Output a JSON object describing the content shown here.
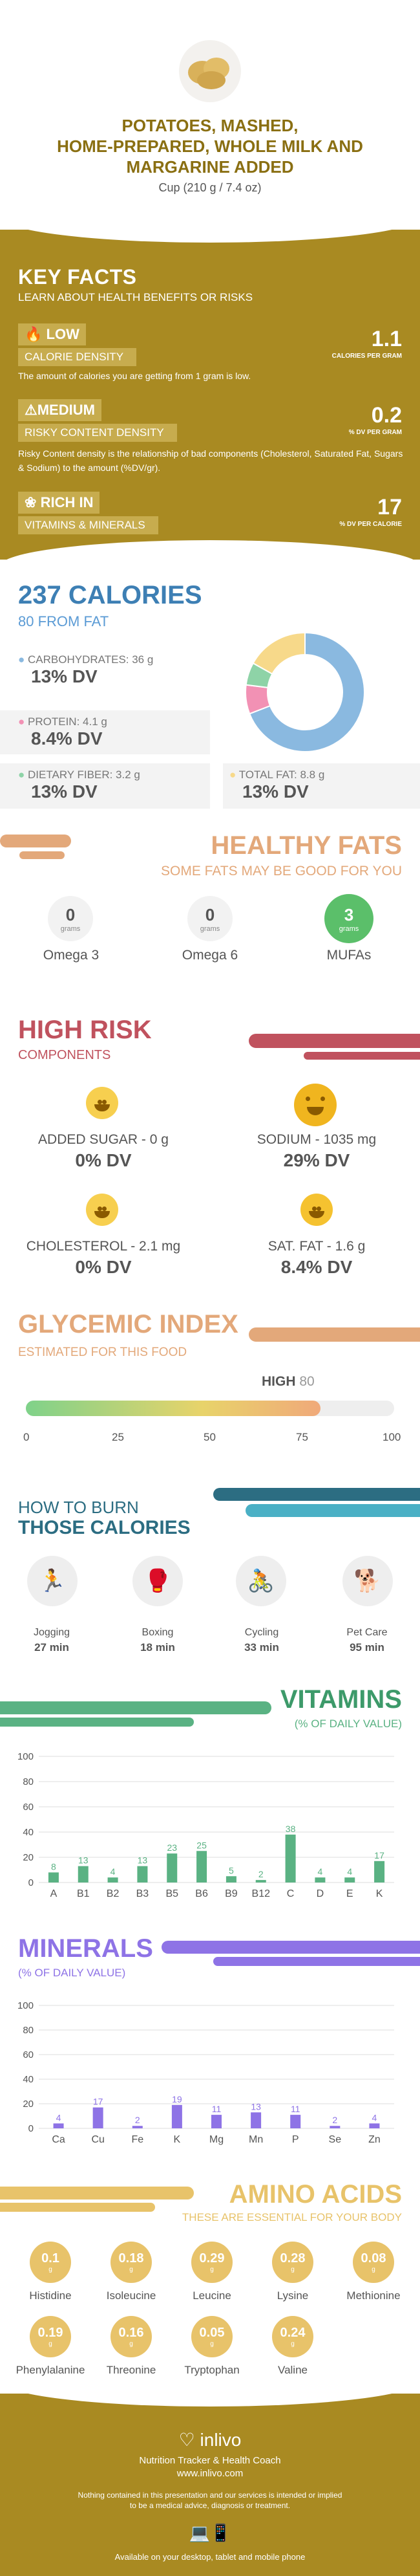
{
  "title": {
    "line1": "POTATOES, MASHED,",
    "line2": "HOME-PREPARED, WHOLE MILK AND",
    "line3": "MARGARINE ADDED",
    "serving": "Cup (210 g / 7.4 oz)"
  },
  "keyfacts": {
    "title": "KEY FACTS",
    "subtitle": "LEARN ABOUT HEALTH BENEFITS OR RISKS",
    "items": [
      {
        "level": "LOW",
        "label": "CALORIE DENSITY",
        "value": "1.1",
        "unit": "CALORIES PER GRAM",
        "desc": "The amount of calories you are getting from 1 gram is low."
      },
      {
        "level": "MEDIUM",
        "label": "RISKY CONTENT DENSITY",
        "value": "0.2",
        "unit": "% DV PER GRAM",
        "desc": "Risky Content density is the relationship of bad components (Cholesterol, Saturated Fat, Sugars & Sodium) to the amount (%DV/gr)."
      },
      {
        "level": "RICH IN",
        "label": "VITAMINS & MINERALS",
        "value": "17",
        "unit": "% DV PER CALORIE",
        "desc": ""
      }
    ]
  },
  "calories": {
    "title": "237 CALORIES",
    "fromfat": "80 FROM FAT",
    "carbs": {
      "label": "CARBOHYDRATES: 36 g",
      "dv": "13% DV"
    },
    "protein": {
      "label": "PROTEIN: 4.1 g",
      "dv": "8.4% DV"
    },
    "fiber": {
      "label": "DIETARY FIBER: 3.2 g",
      "dv": "13% DV"
    },
    "fat": {
      "label": "TOTAL FAT: 8.8 g",
      "dv": "13% DV"
    }
  },
  "chart_data": [
    {
      "type": "pie",
      "title": "",
      "categories": [
        "Carbohydrates",
        "Protein",
        "Dietary Fiber",
        "Total Fat"
      ],
      "values": [
        36,
        4.1,
        3.2,
        8.8
      ],
      "colors": [
        "#8ab9e0",
        "#f291b4",
        "#8ed3a7",
        "#f7d98a"
      ]
    },
    {
      "type": "bar",
      "title": "VITAMINS",
      "ylabel": "% OF DAILY VALUE",
      "ylim": [
        0,
        100
      ],
      "categories": [
        "A",
        "B1",
        "B2",
        "B3",
        "B5",
        "B6",
        "B9",
        "B12",
        "C",
        "D",
        "E",
        "K"
      ],
      "values": [
        8,
        13,
        4,
        13,
        23,
        25,
        5,
        2,
        38,
        4,
        4,
        17
      ],
      "color": "#5ab283"
    },
    {
      "type": "bar",
      "title": "MINERALS",
      "ylabel": "% OF DAILY VALUE",
      "ylim": [
        0,
        100
      ],
      "categories": [
        "Ca",
        "Cu",
        "Fe",
        "K",
        "Mg",
        "Mn",
        "P",
        "Se",
        "Zn"
      ],
      "values": [
        4,
        17,
        2,
        19,
        11,
        13,
        11,
        2,
        4
      ],
      "color": "#8e73e6"
    }
  ],
  "healthyfats": {
    "title": "HEALTHY FATS",
    "subtitle": "SOME FATS MAY BE GOOD FOR YOU",
    "unit": "grams",
    "items": [
      {
        "value": "0",
        "label": "Omega 3"
      },
      {
        "value": "0",
        "label": "Omega 6"
      },
      {
        "value": "3",
        "label": "MUFAs"
      }
    ]
  },
  "risk": {
    "title": "HIGH RISK",
    "subtitle": "COMPONENTS",
    "items": [
      {
        "label": "ADDED SUGAR - 0 g",
        "dv": "0% DV"
      },
      {
        "label": "SODIUM - 1035 mg",
        "dv": "29% DV"
      },
      {
        "label": "CHOLESTEROL - 2.1 mg",
        "dv": "0% DV"
      },
      {
        "label": "SAT. FAT - 1.6 g",
        "dv": "8.4% DV"
      }
    ]
  },
  "glycemic": {
    "title": "GLYCEMIC INDEX",
    "subtitle": "ESTIMATED FOR THIS FOOD",
    "level": "HIGH",
    "value": "80",
    "ticks": [
      "0",
      "25",
      "50",
      "75",
      "100"
    ],
    "fraction": 0.8
  },
  "burn": {
    "title1": "HOW TO BURN",
    "title2": "THOSE CALORIES",
    "items": [
      {
        "label": "Jogging",
        "time": "27 min"
      },
      {
        "label": "Boxing",
        "time": "18 min"
      },
      {
        "label": "Cycling",
        "time": "33 min"
      },
      {
        "label": "Pet Care",
        "time": "95 min"
      }
    ]
  },
  "vitamins": {
    "title": "VITAMINS",
    "subtitle": "(% OF DAILY VALUE)"
  },
  "minerals": {
    "title": "MINERALS",
    "subtitle": "(% OF DAILY VALUE)"
  },
  "amino": {
    "title": "AMINO ACIDS",
    "subtitle": "THESE ARE ESSENTIAL FOR YOUR BODY",
    "unit": "g",
    "items": [
      {
        "value": "0.1",
        "label": "Histidine"
      },
      {
        "value": "0.18",
        "label": "Isoleucine"
      },
      {
        "value": "0.29",
        "label": "Leucine"
      },
      {
        "value": "0.28",
        "label": "Lysine"
      },
      {
        "value": "0.08",
        "label": "Methionine"
      },
      {
        "value": "0.19",
        "label": "Phenylalanine"
      },
      {
        "value": "0.16",
        "label": "Threonine"
      },
      {
        "value": "0.05",
        "label": "Tryptophan"
      },
      {
        "value": "0.24",
        "label": "Valine"
      }
    ]
  },
  "footer": {
    "brand": "inlivo",
    "tagline": "Nutrition Tracker & Health Coach",
    "url": "www.inlivo.com",
    "disclaimer1": "Nothing contained in this presentation and our services is intended or implied",
    "disclaimer2": "to be a medical advice, diagnosis or treatment.",
    "available": "Available on your desktop, tablet and mobile phone"
  },
  "colors": {
    "gold": "#a98a22",
    "blue": "#3d7fb4",
    "green": "#5ab283",
    "purple": "#8e73e6",
    "orange": "#e3a87a",
    "red": "#c0525e",
    "yellow": "#e8c36a"
  }
}
